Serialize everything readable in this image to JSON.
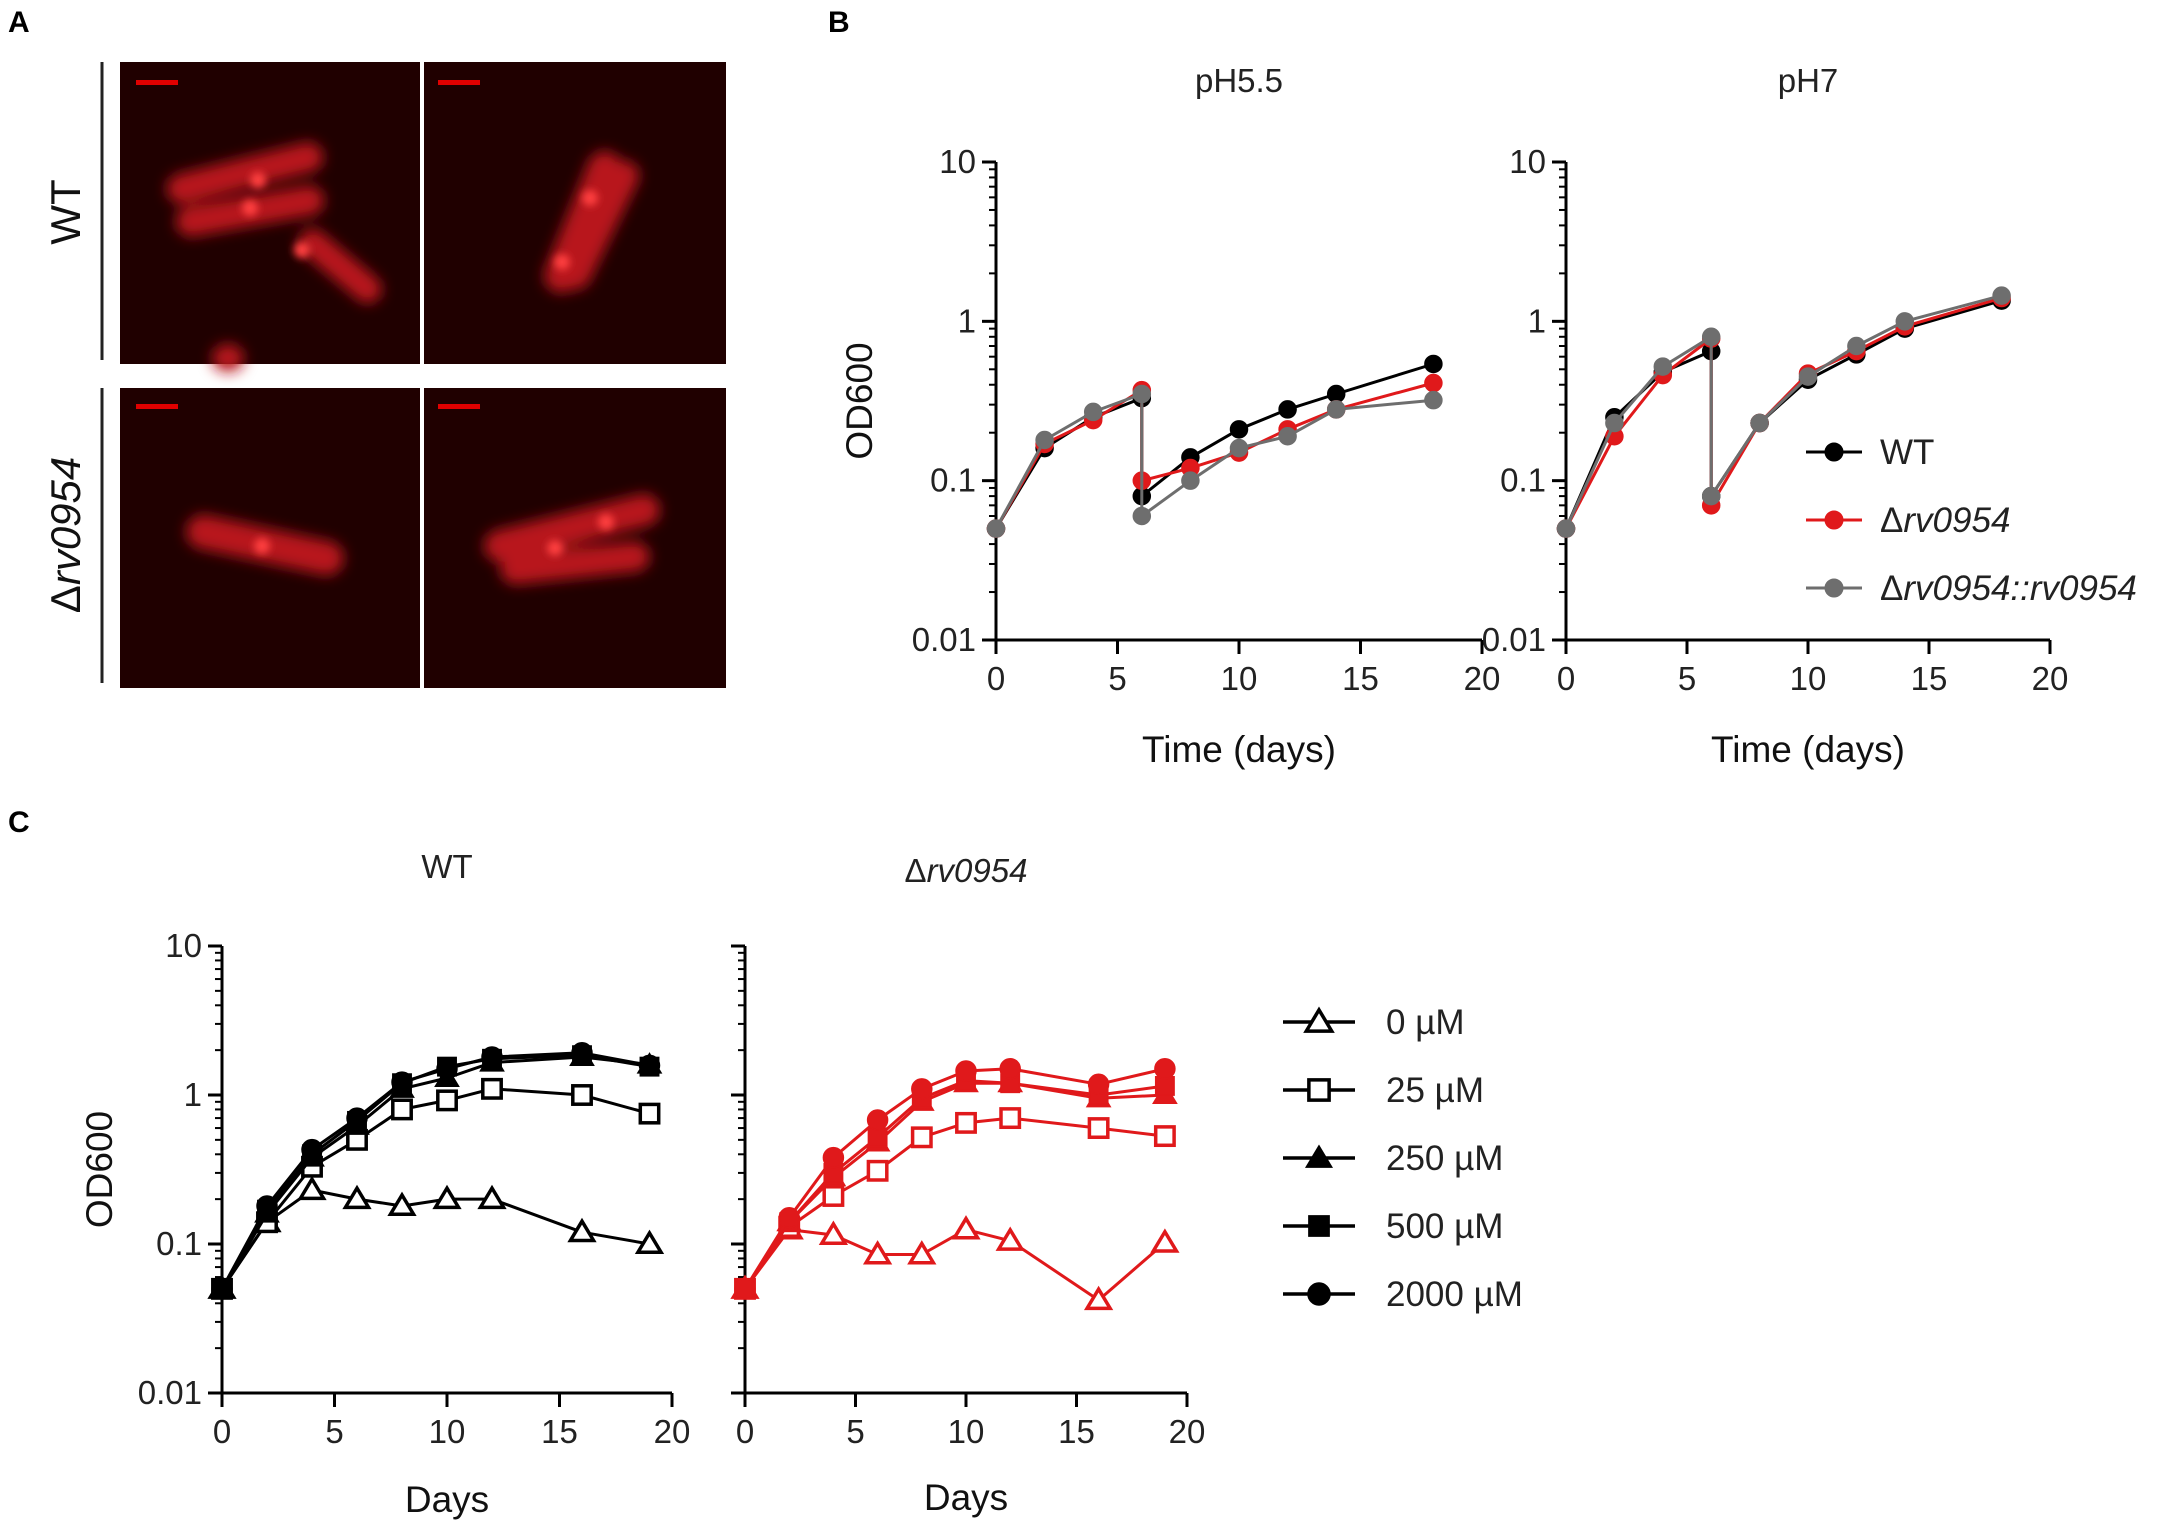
{
  "panel_labels": {
    "a": "A",
    "b": "B",
    "c": "C"
  },
  "microscopy": {
    "wt_label": "WT",
    "mutant_delta": "Δ",
    "mutant_gene": "rv0954",
    "background": "#200000",
    "cell_color": "#c41a1a",
    "scale_bar_color": "#e00000"
  },
  "chart_data": [
    {
      "type": "line",
      "panel": "B",
      "title": "pH5.5",
      "xlabel": "Time (days)",
      "ylabel": "OD600",
      "yscale": "log",
      "xlim": [
        0,
        20
      ],
      "ylim": [
        0.01,
        10
      ],
      "xticks": [
        "0",
        "5",
        "10",
        "15",
        "20"
      ],
      "yticks": [
        "0.01",
        "0.1",
        "1",
        "10"
      ],
      "series": [
        {
          "name": "WT",
          "color": "#000000",
          "x": [
            0,
            2,
            4,
            6,
            6,
            8,
            10,
            12,
            14,
            18
          ],
          "values": [
            0.05,
            0.16,
            0.25,
            0.33,
            0.08,
            0.14,
            0.21,
            0.28,
            0.35,
            0.54
          ]
        },
        {
          "name": "Δrv0954",
          "color": "#e0191b",
          "x": [
            0,
            2,
            4,
            6,
            6,
            8,
            10,
            12,
            14,
            18
          ],
          "values": [
            0.05,
            0.17,
            0.24,
            0.37,
            0.1,
            0.12,
            0.15,
            0.21,
            0.28,
            0.41
          ]
        },
        {
          "name": "Δrv0954::rv0954",
          "color": "#6e6e6e",
          "x": [
            0,
            2,
            4,
            6,
            6,
            8,
            10,
            12,
            14,
            18
          ],
          "values": [
            0.05,
            0.18,
            0.27,
            0.35,
            0.06,
            0.1,
            0.16,
            0.19,
            0.28,
            0.32
          ]
        }
      ]
    },
    {
      "type": "line",
      "panel": "B",
      "title": "pH7",
      "xlabel": "Time (days)",
      "ylabel": "",
      "yscale": "log",
      "xlim": [
        0,
        20
      ],
      "ylim": [
        0.01,
        10
      ],
      "xticks": [
        "0",
        "5",
        "10",
        "15",
        "20"
      ],
      "yticks": [
        "0.01",
        "0.1",
        "1",
        "10"
      ],
      "legend": {
        "position": "right",
        "entries": [
          {
            "label": "WT",
            "color": "#000000"
          },
          {
            "delta": "Δ",
            "italic": "rv0954",
            "color": "#e0191b"
          },
          {
            "delta": "Δ",
            "italic": "rv0954::rv0954",
            "color": "#6e6e6e"
          }
        ]
      },
      "series": [
        {
          "name": "WT",
          "color": "#000000",
          "x": [
            0,
            2,
            4,
            6,
            6,
            8,
            10,
            12,
            14,
            18
          ],
          "values": [
            0.05,
            0.25,
            0.48,
            0.65,
            0.08,
            0.23,
            0.43,
            0.62,
            0.9,
            1.35
          ]
        },
        {
          "name": "Δrv0954",
          "color": "#e0191b",
          "x": [
            0,
            2,
            4,
            6,
            6,
            8,
            10,
            12,
            14,
            18
          ],
          "values": [
            0.05,
            0.19,
            0.46,
            0.78,
            0.07,
            0.23,
            0.47,
            0.65,
            0.93,
            1.4
          ]
        },
        {
          "name": "Δrv0954::rv0954",
          "color": "#6e6e6e",
          "x": [
            0,
            2,
            4,
            6,
            6,
            8,
            10,
            12,
            14,
            18
          ],
          "values": [
            0.05,
            0.23,
            0.52,
            0.8,
            0.08,
            0.23,
            0.45,
            0.7,
            1.0,
            1.45
          ]
        }
      ]
    },
    {
      "type": "line",
      "panel": "C",
      "title": "WT",
      "xlabel": "Days",
      "ylabel": "OD600",
      "yscale": "log",
      "xlim": [
        0,
        20
      ],
      "ylim": [
        0.01,
        10
      ],
      "xticks": [
        "0",
        "5",
        "10",
        "15",
        "20"
      ],
      "yticks": [
        "0.01",
        "0.1",
        "1",
        "10"
      ],
      "series": [
        {
          "name": "0 µM",
          "marker": "triangle-open",
          "color": "#000000",
          "x": [
            0,
            2,
            4,
            6,
            8,
            10,
            12,
            16,
            19
          ],
          "values": [
            0.05,
            0.14,
            0.23,
            0.2,
            0.18,
            0.2,
            0.2,
            0.12,
            0.1
          ]
        },
        {
          "name": "25 µM",
          "marker": "square-open",
          "color": "#000000",
          "x": [
            0,
            2,
            4,
            6,
            8,
            10,
            12,
            16,
            19
          ],
          "values": [
            0.05,
            0.14,
            0.33,
            0.5,
            0.8,
            0.92,
            1.1,
            1.0,
            0.75
          ]
        },
        {
          "name": "250 µM",
          "marker": "triangle",
          "color": "#000000",
          "x": [
            0,
            2,
            4,
            6,
            8,
            10,
            12,
            16,
            19
          ],
          "values": [
            0.05,
            0.16,
            0.38,
            0.62,
            1.1,
            1.3,
            1.65,
            1.8,
            1.6
          ]
        },
        {
          "name": "500 µM",
          "marker": "square",
          "color": "#000000",
          "x": [
            0,
            2,
            4,
            6,
            8,
            10,
            12,
            16,
            19
          ],
          "values": [
            0.05,
            0.17,
            0.4,
            0.67,
            1.2,
            1.55,
            1.75,
            1.85,
            1.55
          ]
        },
        {
          "name": "2000 µM",
          "marker": "circle",
          "color": "#000000",
          "x": [
            0,
            2,
            4,
            6,
            8,
            10,
            12,
            16,
            19
          ],
          "values": [
            0.05,
            0.18,
            0.43,
            0.7,
            1.22,
            1.5,
            1.8,
            1.92,
            1.58
          ]
        }
      ]
    },
    {
      "type": "line",
      "panel": "C",
      "title_delta": "Δ",
      "title_italic": "rv0954",
      "xlabel": "Days",
      "ylabel": "",
      "yscale": "log",
      "xlim": [
        0,
        20
      ],
      "ylim": [
        0.01,
        10
      ],
      "xticks": [
        "0",
        "5",
        "10",
        "15",
        "20"
      ],
      "legend": {
        "position": "right",
        "entries": [
          {
            "label": "0 µM",
            "marker": "triangle-open"
          },
          {
            "label": "25 µM",
            "marker": "square-open"
          },
          {
            "label": "250 µM",
            "marker": "triangle"
          },
          {
            "label": "500 µM",
            "marker": "square"
          },
          {
            "label": "2000 µM",
            "marker": "circle"
          }
        ]
      },
      "series": [
        {
          "name": "0 µM",
          "marker": "triangle-open",
          "color": "#e0191b",
          "x": [
            0,
            2,
            4,
            6,
            8,
            10,
            12,
            16,
            19
          ],
          "values": [
            0.05,
            0.125,
            0.115,
            0.085,
            0.085,
            0.125,
            0.105,
            0.042,
            0.102
          ]
        },
        {
          "name": "25 µM",
          "marker": "square-open",
          "color": "#e0191b",
          "x": [
            0,
            2,
            4,
            6,
            8,
            10,
            12,
            16,
            19
          ],
          "values": [
            0.05,
            0.13,
            0.21,
            0.31,
            0.52,
            0.65,
            0.7,
            0.6,
            0.53
          ]
        },
        {
          "name": "250 µM",
          "marker": "triangle",
          "color": "#e0191b",
          "x": [
            0,
            2,
            4,
            6,
            8,
            10,
            12,
            16,
            19
          ],
          "values": [
            0.05,
            0.14,
            0.28,
            0.48,
            0.9,
            1.2,
            1.2,
            0.95,
            1.0
          ]
        },
        {
          "name": "500 µM",
          "marker": "square",
          "color": "#e0191b",
          "x": [
            0,
            2,
            4,
            6,
            8,
            10,
            12,
            16,
            19
          ],
          "values": [
            0.05,
            0.14,
            0.3,
            0.52,
            0.95,
            1.25,
            1.2,
            1.0,
            1.15
          ]
        },
        {
          "name": "2000 µM",
          "marker": "circle",
          "color": "#e0191b",
          "x": [
            0,
            2,
            4,
            6,
            8,
            10,
            12,
            16,
            19
          ],
          "values": [
            0.05,
            0.15,
            0.38,
            0.68,
            1.1,
            1.45,
            1.5,
            1.18,
            1.5
          ]
        }
      ]
    }
  ]
}
